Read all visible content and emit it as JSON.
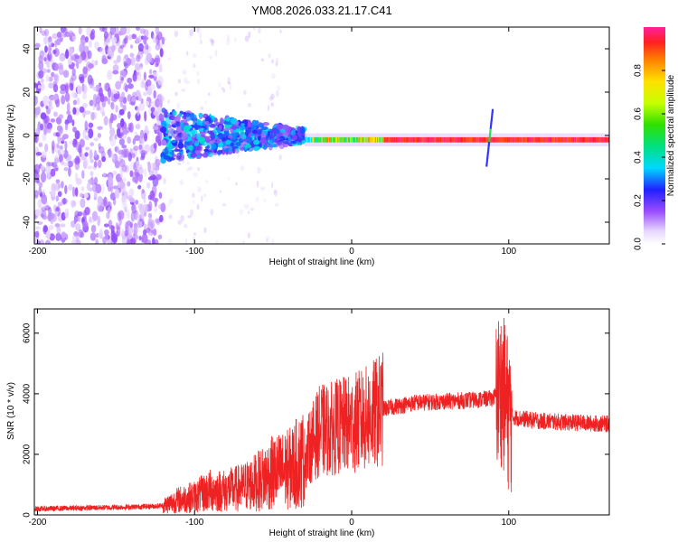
{
  "title": "YM08.2026.033.21.17.C41",
  "chart_data": [
    {
      "type": "heatmap",
      "title": "YM08.2026.033.21.17.C41",
      "xlabel": "Height of straight line (km)",
      "ylabel": "Frequency (Hz)",
      "xlim": [
        -202,
        164
      ],
      "ylim": [
        -50,
        50
      ],
      "xticks": [
        -200,
        -100,
        0,
        100
      ],
      "yticks": [
        -40,
        -20,
        0,
        20,
        40
      ],
      "colorbar": {
        "label": "Normalized spectral amplitude",
        "range": [
          0,
          1
        ],
        "ticks": [
          0.0,
          0.2,
          0.4,
          0.6,
          0.8
        ],
        "colormap": "white-purple-blue-cyan-green-yellow-orange-red-magenta"
      },
      "features": {
        "noise_region_km": [
          -202,
          -120
        ],
        "scattered_region_km": [
          -120,
          -30
        ],
        "narrow_band_region_km": [
          -30,
          164
        ],
        "band_center_hz": -2,
        "spike_at_km": 88
      }
    },
    {
      "type": "line",
      "xlabel": "Height of straight line (km)",
      "ylabel": "SNR (10 * v/v)",
      "xlim": [
        -202,
        164
      ],
      "ylim": [
        0,
        6800
      ],
      "xticks": [
        -200,
        -100,
        0,
        100
      ],
      "yticks": [
        0,
        2000,
        4000,
        6000
      ],
      "series_color": "#ee2222",
      "series": [
        {
          "name": "SNR",
          "x": [
            -200,
            -180,
            -160,
            -140,
            -120,
            -110,
            -100,
            -90,
            -80,
            -70,
            -60,
            -50,
            -40,
            -30,
            -25,
            -20,
            -15,
            -10,
            0,
            10,
            20,
            40,
            60,
            80,
            90,
            95,
            98,
            100,
            105,
            120,
            140,
            164
          ],
          "values": [
            200,
            220,
            240,
            260,
            300,
            500,
            600,
            800,
            800,
            900,
            1100,
            1400,
            1500,
            1900,
            2400,
            2800,
            2800,
            2900,
            3000,
            3200,
            3500,
            3700,
            3750,
            3800,
            3850,
            4200,
            3800,
            3300,
            3200,
            3100,
            3050,
            3000
          ]
        }
      ]
    }
  ]
}
